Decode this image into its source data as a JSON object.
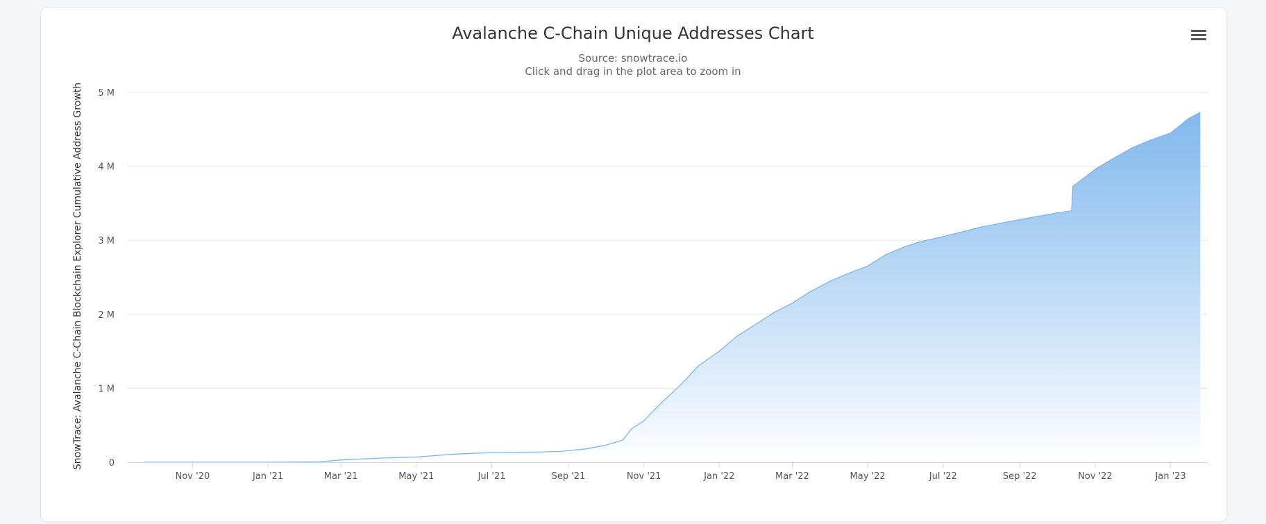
{
  "chart_data": {
    "type": "area",
    "title": "Avalanche C-Chain Unique Addresses Chart",
    "subtitle": [
      "Source: snowtrace.io",
      "Click and drag in the plot area to zoom in"
    ],
    "ylabel": "SnowTrace: Avalanche C-Chain Blockchain Explorer Cumulative Address Growth",
    "xlabel": "",
    "ylim": [
      0,
      5000000
    ],
    "xlim": [
      "2020-09-09",
      "2023-01-31"
    ],
    "yticks": [
      {
        "value": 0,
        "label": "0"
      },
      {
        "value": 1000000,
        "label": "1 M"
      },
      {
        "value": 2000000,
        "label": "2 M"
      },
      {
        "value": 3000000,
        "label": "3 M"
      },
      {
        "value": 4000000,
        "label": "4 M"
      },
      {
        "value": 5000000,
        "label": "5 M"
      }
    ],
    "xticks": [
      {
        "date": "2020-11-01",
        "label": "Nov '20"
      },
      {
        "date": "2021-01-01",
        "label": "Jan '21"
      },
      {
        "date": "2021-03-01",
        "label": "Mar '21"
      },
      {
        "date": "2021-05-01",
        "label": "May '21"
      },
      {
        "date": "2021-07-01",
        "label": "Jul '21"
      },
      {
        "date": "2021-09-01",
        "label": "Sep '21"
      },
      {
        "date": "2021-11-01",
        "label": "Nov '21"
      },
      {
        "date": "2022-01-01",
        "label": "Jan '22"
      },
      {
        "date": "2022-03-01",
        "label": "Mar '22"
      },
      {
        "date": "2022-05-01",
        "label": "May '22"
      },
      {
        "date": "2022-07-01",
        "label": "Jul '22"
      },
      {
        "date": "2022-09-01",
        "label": "Sep '22"
      },
      {
        "date": "2022-11-01",
        "label": "Nov '22"
      },
      {
        "date": "2023-01-01",
        "label": "Jan '23"
      }
    ],
    "grid": true,
    "legend": "none",
    "colors": {
      "line": "#7cb5ec",
      "fill_top": "#7cb5ec",
      "fill_bottom": "#ffffff",
      "grid": "#e6e6e6",
      "axis": "#ccd6eb"
    },
    "series": [
      {
        "x": [
          "2020-09-23",
          "2020-11-01",
          "2021-01-01",
          "2021-02-10",
          "2021-03-01",
          "2021-04-01",
          "2021-05-01",
          "2021-06-01",
          "2021-07-01",
          "2021-08-01",
          "2021-08-25",
          "2021-09-15",
          "2021-10-01",
          "2021-10-15",
          "2021-10-22",
          "2021-11-01",
          "2021-11-15",
          "2021-12-01",
          "2021-12-15",
          "2022-01-01",
          "2022-01-15",
          "2022-02-01",
          "2022-02-15",
          "2022-03-01",
          "2022-03-15",
          "2022-04-01",
          "2022-04-15",
          "2022-05-01",
          "2022-05-15",
          "2022-06-01",
          "2022-06-15",
          "2022-07-01",
          "2022-08-01",
          "2022-09-01",
          "2022-10-01",
          "2022-10-13",
          "2022-10-14",
          "2022-10-25",
          "2022-11-01",
          "2022-11-15",
          "2022-12-01",
          "2022-12-15",
          "2023-01-01",
          "2023-01-07",
          "2023-01-15",
          "2023-01-25"
        ],
        "y": [
          0,
          0,
          0,
          5000,
          30000,
          55000,
          70000,
          110000,
          130000,
          135000,
          145000,
          180000,
          230000,
          300000,
          450000,
          560000,
          800000,
          1050000,
          1300000,
          1500000,
          1700000,
          1880000,
          2030000,
          2150000,
          2300000,
          2450000,
          2550000,
          2650000,
          2800000,
          2920000,
          2990000,
          3050000,
          3180000,
          3280000,
          3370000,
          3400000,
          3730000,
          3870000,
          3960000,
          4100000,
          4250000,
          4350000,
          4450000,
          4530000,
          4640000,
          4730000
        ]
      }
    ]
  }
}
